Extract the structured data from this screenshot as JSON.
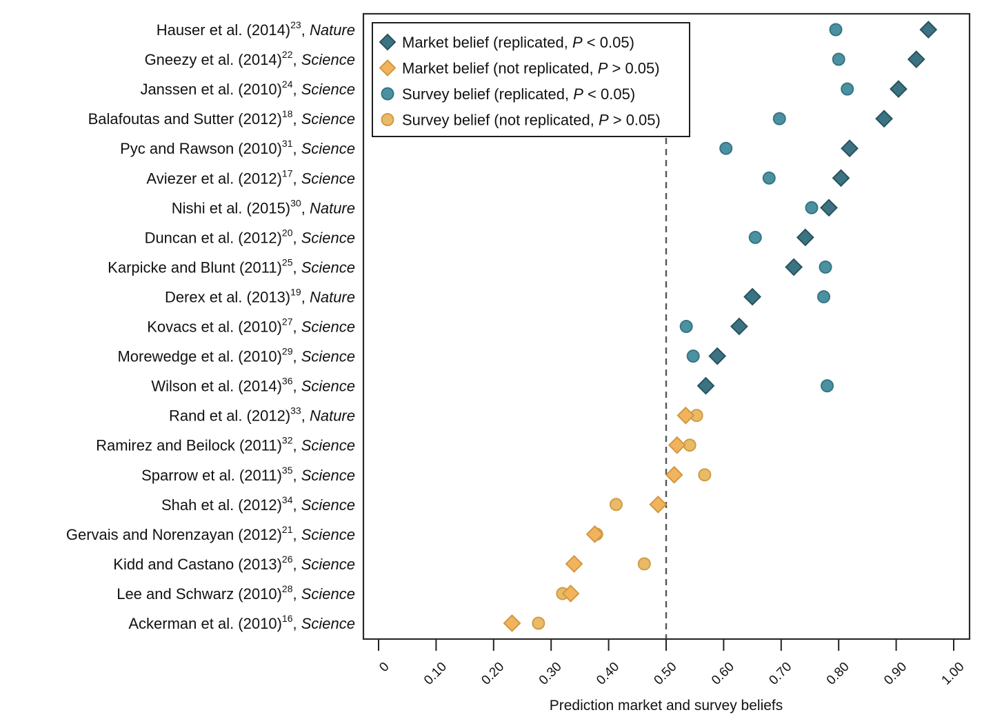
{
  "chart_data": {
    "type": "scatter",
    "title": "",
    "xlabel": "Prediction market and survey beliefs",
    "ylabel": "",
    "xlim": [
      0,
      1.0
    ],
    "xticks": [
      0,
      0.1,
      0.2,
      0.3,
      0.4,
      0.5,
      0.6,
      0.7,
      0.8,
      0.9,
      1.0
    ],
    "xtick_labels": [
      "0",
      "0.10",
      "0.20",
      "0.30",
      "0.40",
      "0.50",
      "0.60",
      "0.70",
      "0.80",
      "0.90",
      "1.00"
    ],
    "reference_line": {
      "x": 0.5,
      "style": "dashed"
    },
    "grid": false,
    "legend": {
      "placement": "top-left",
      "entries": [
        {
          "key": "market_replicated",
          "marker": "diamond",
          "text": "Market belief (replicated, ",
          "p_sym": "P",
          "cmp": " < 0.05)",
          "color": "#3b7383",
          "stroke": "#28525e"
        },
        {
          "key": "market_not_replicated",
          "marker": "diamond",
          "text": "Market belief (not replicated, ",
          "p_sym": "P",
          "cmp": " > 0.05)",
          "color": "#f2b35d",
          "stroke": "#d19742"
        },
        {
          "key": "survey_replicated",
          "marker": "circle",
          "text": "Survey belief (replicated, ",
          "p_sym": "P",
          "cmp": " < 0.05)",
          "color": "#4b91a1",
          "stroke": "#357585"
        },
        {
          "key": "survey_not_replicated",
          "marker": "circle",
          "text": "Survey belief (not replicated, ",
          "p_sym": "P",
          "cmp": " > 0.05)",
          "color": "#e9bb67",
          "stroke": "#cf9c45"
        }
      ]
    },
    "studies": [
      {
        "authors": "Hauser et al. (2014)",
        "ref": "23",
        "journal": "Nature",
        "replicated": true,
        "market": 0.956,
        "survey": 0.795
      },
      {
        "authors": "Gneezy et al. (2014)",
        "ref": "22",
        "journal": "Science",
        "replicated": true,
        "market": 0.935,
        "survey": 0.8
      },
      {
        "authors": "Janssen et al. (2010)",
        "ref": "24",
        "journal": "Science",
        "replicated": true,
        "market": 0.904,
        "survey": 0.815
      },
      {
        "authors": "Balafoutas and Sutter (2012)",
        "ref": "18",
        "journal": "Science",
        "replicated": true,
        "market": 0.879,
        "survey": 0.697
      },
      {
        "authors": "Pyc and Rawson (2010)",
        "ref": "31",
        "journal": "Science",
        "replicated": true,
        "market": 0.819,
        "survey": 0.604
      },
      {
        "authors": "Aviezer et al. (2012)",
        "ref": "17",
        "journal": "Science",
        "replicated": true,
        "market": 0.804,
        "survey": 0.679
      },
      {
        "authors": "Nishi et al. (2015)",
        "ref": "30",
        "journal": "Nature",
        "replicated": true,
        "market": 0.783,
        "survey": 0.753
      },
      {
        "authors": "Duncan et al. (2012)",
        "ref": "20",
        "journal": "Science",
        "replicated": true,
        "market": 0.742,
        "survey": 0.655
      },
      {
        "authors": "Karpicke and Blunt (2011)",
        "ref": "25",
        "journal": "Science",
        "replicated": true,
        "market": 0.722,
        "survey": 0.777
      },
      {
        "authors": "Derex et al. (2013)",
        "ref": "19",
        "journal": "Nature",
        "replicated": true,
        "market": 0.65,
        "survey": 0.774
      },
      {
        "authors": "Kovacs et al. (2010)",
        "ref": "27",
        "journal": "Science",
        "replicated": true,
        "market": 0.627,
        "survey": 0.535
      },
      {
        "authors": "Morewedge et al. (2010)",
        "ref": "29",
        "journal": "Science",
        "replicated": true,
        "market": 0.589,
        "survey": 0.547
      },
      {
        "authors": "Wilson et al. (2014)",
        "ref": "36",
        "journal": "Science",
        "replicated": true,
        "market": 0.569,
        "survey": 0.78
      },
      {
        "authors": "Rand et al. (2012)",
        "ref": "33",
        "journal": "Nature",
        "replicated": false,
        "market": 0.534,
        "survey": 0.553
      },
      {
        "authors": "Ramirez and Beilock (2011)",
        "ref": "32",
        "journal": "Science",
        "replicated": false,
        "market": 0.519,
        "survey": 0.541
      },
      {
        "authors": "Sparrow et al. (2011)",
        "ref": "35",
        "journal": "Science",
        "replicated": false,
        "market": 0.514,
        "survey": 0.567
      },
      {
        "authors": "Shah et al. (2012)",
        "ref": "34",
        "journal": "Science",
        "replicated": false,
        "market": 0.486,
        "survey": 0.413
      },
      {
        "authors": "Gervais and Norenzayan (2012)",
        "ref": "21",
        "journal": "Science",
        "replicated": false,
        "market": 0.376,
        "survey": 0.379
      },
      {
        "authors": "Kidd and Castano (2013)",
        "ref": "26",
        "journal": "Science",
        "replicated": false,
        "market": 0.34,
        "survey": 0.462
      },
      {
        "authors": "Lee and Schwarz (2010)",
        "ref": "28",
        "journal": "Science",
        "replicated": false,
        "market": 0.334,
        "survey": 0.32
      },
      {
        "authors": "Ackerman et al. (2010)",
        "ref": "16",
        "journal": "Science",
        "replicated": false,
        "market": 0.232,
        "survey": 0.278
      }
    ]
  }
}
